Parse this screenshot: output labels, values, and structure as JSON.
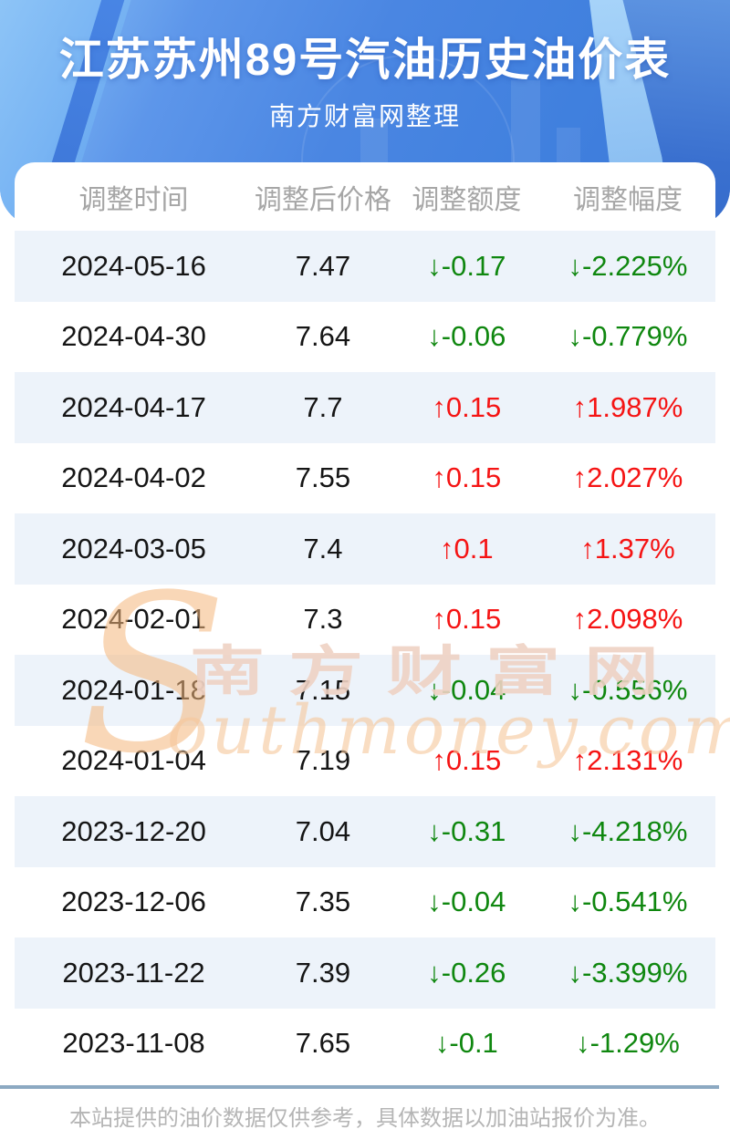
{
  "header": {
    "title": "江苏苏州89号汽油历史油价表",
    "subtitle": "南方财富网整理"
  },
  "table": {
    "columns": [
      "调整时间",
      "调整后价格",
      "调整额度",
      "调整幅度"
    ],
    "rows": [
      {
        "date": "2024-05-16",
        "price": "7.47",
        "change": "↓-0.17",
        "pct": "↓-2.225%",
        "dir": "down"
      },
      {
        "date": "2024-04-30",
        "price": "7.64",
        "change": "↓-0.06",
        "pct": "↓-0.779%",
        "dir": "down"
      },
      {
        "date": "2024-04-17",
        "price": "7.7",
        "change": "↑0.15",
        "pct": "↑1.987%",
        "dir": "up"
      },
      {
        "date": "2024-04-02",
        "price": "7.55",
        "change": "↑0.15",
        "pct": "↑2.027%",
        "dir": "up"
      },
      {
        "date": "2024-03-05",
        "price": "7.4",
        "change": "↑0.1",
        "pct": "↑1.37%",
        "dir": "up"
      },
      {
        "date": "2024-02-01",
        "price": "7.3",
        "change": "↑0.15",
        "pct": "↑2.098%",
        "dir": "up"
      },
      {
        "date": "2024-01-18",
        "price": "7.15",
        "change": "↓-0.04",
        "pct": "↓-0.556%",
        "dir": "down"
      },
      {
        "date": "2024-01-04",
        "price": "7.19",
        "change": "↑0.15",
        "pct": "↑2.131%",
        "dir": "up"
      },
      {
        "date": "2023-12-20",
        "price": "7.04",
        "change": "↓-0.31",
        "pct": "↓-4.218%",
        "dir": "down"
      },
      {
        "date": "2023-12-06",
        "price": "7.35",
        "change": "↓-0.04",
        "pct": "↓-0.541%",
        "dir": "down"
      },
      {
        "date": "2023-11-22",
        "price": "7.39",
        "change": "↓-0.26",
        "pct": "↓-3.399%",
        "dir": "down"
      },
      {
        "date": "2023-11-08",
        "price": "7.65",
        "change": "↓-0.1",
        "pct": "↓-1.29%",
        "dir": "down"
      }
    ]
  },
  "watermark": {
    "swoosh": "S",
    "brand": "南方财富网",
    "script": "outhmoney.com"
  },
  "footer": {
    "note": "本站提供的油价数据仅供参考，具体数据以加油站报价为准。"
  },
  "colors": {
    "up_red": "#f51414",
    "down_green": "#0f870f",
    "accent_blue": "#4a86e2",
    "stripe": "#edf3fa",
    "divider": "#8ca9c2"
  },
  "icons": {
    "up": "↑",
    "down": "↓"
  }
}
